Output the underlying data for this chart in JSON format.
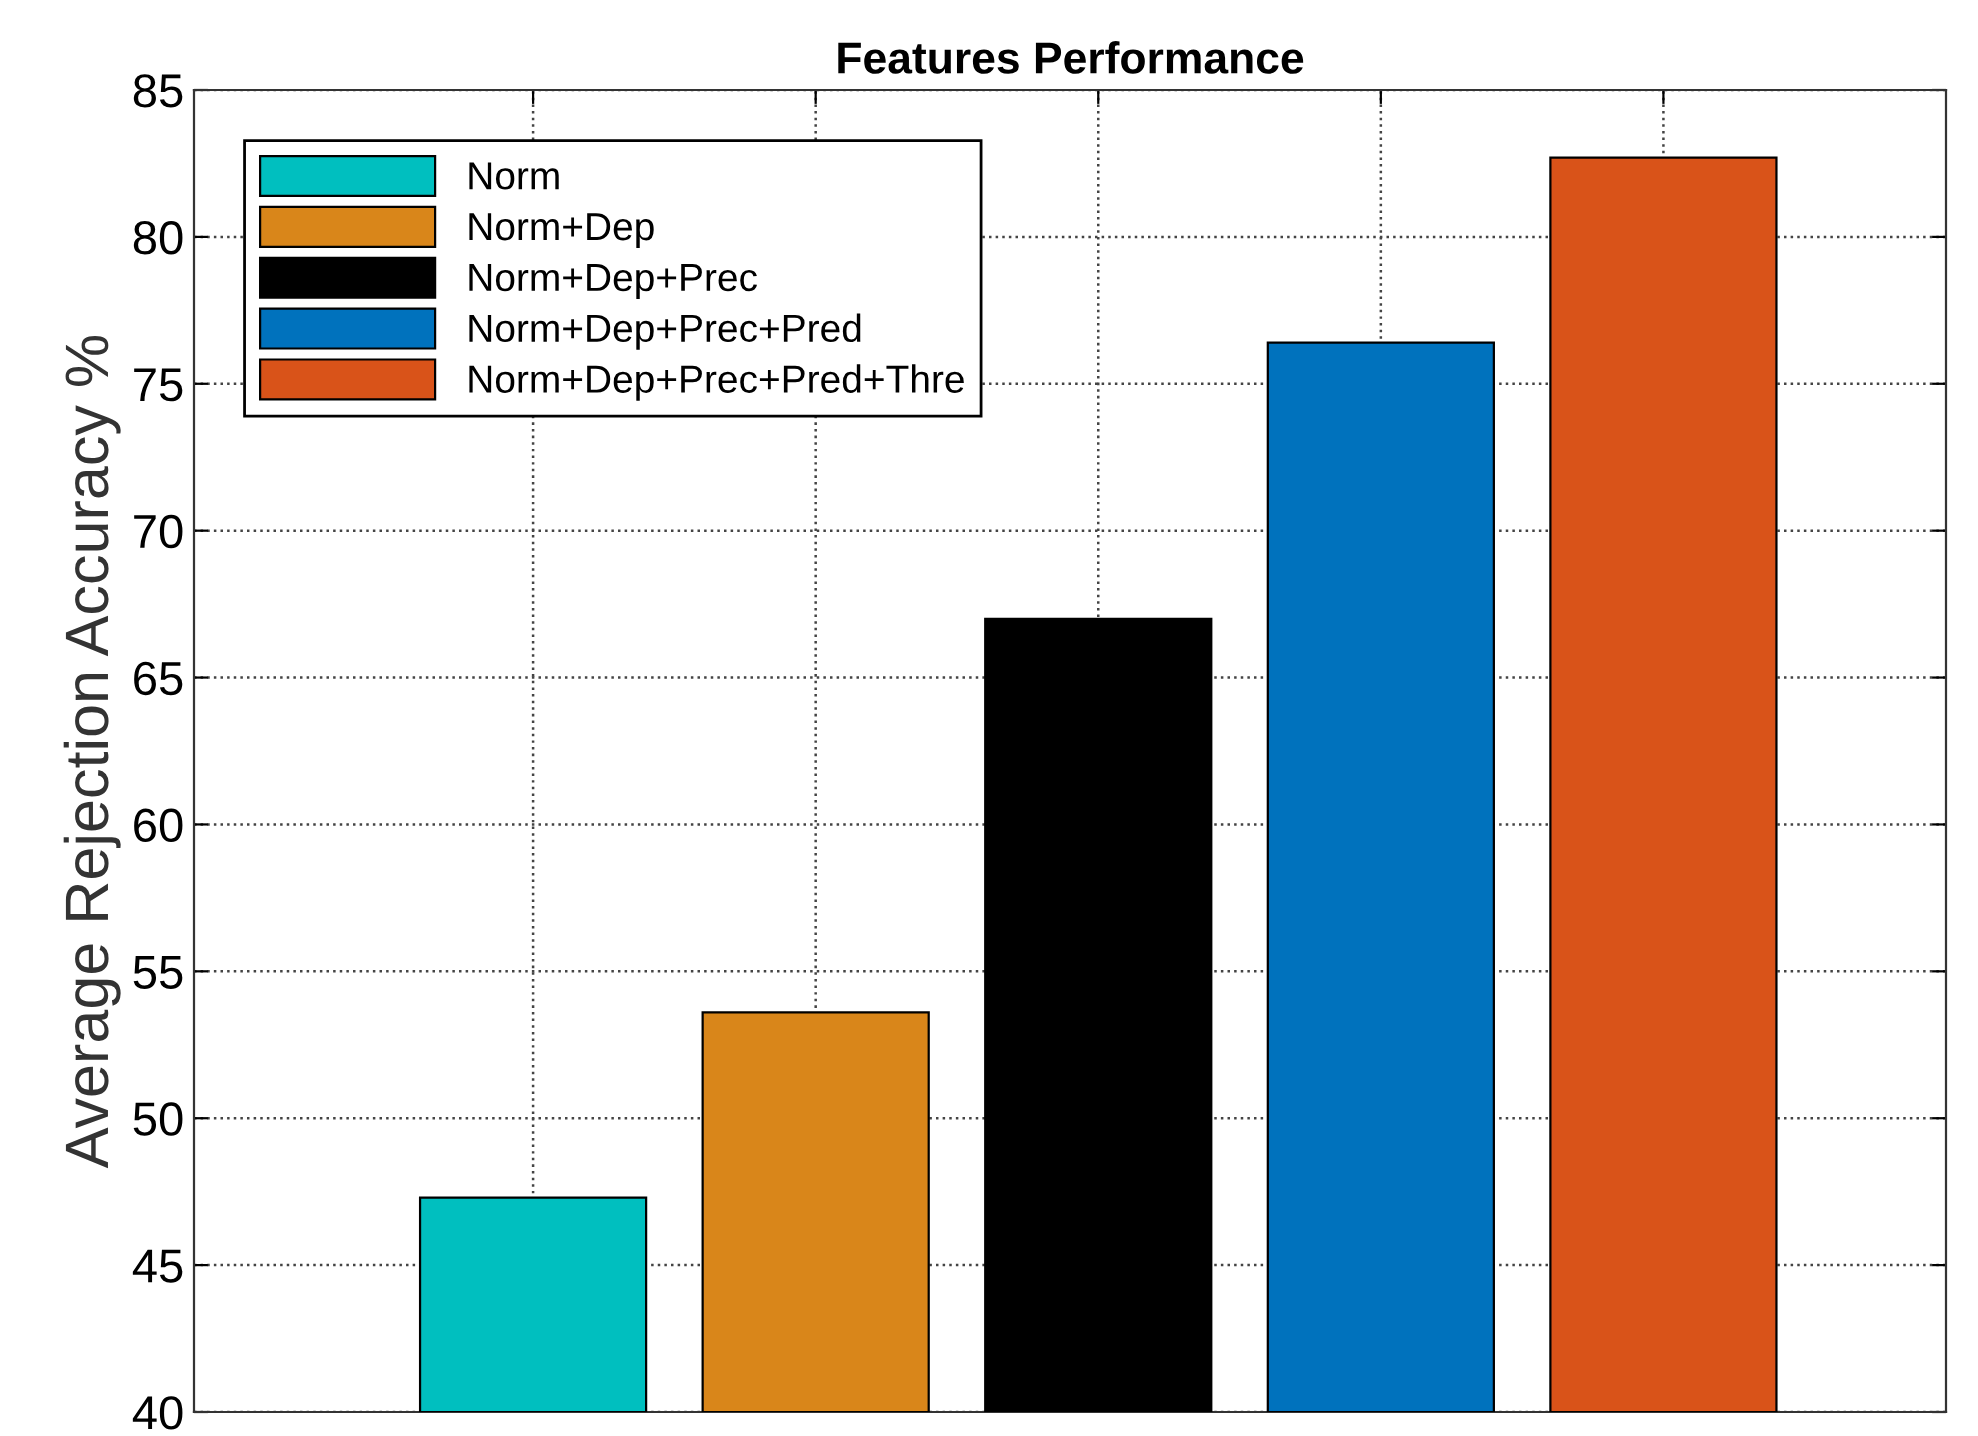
{
  "chart_data": {
    "type": "bar",
    "title": "Features Performance",
    "ylabel": "Average Rejection Accuracy %",
    "categories": [
      null,
      null,
      null,
      null,
      null
    ],
    "series": [
      {
        "name": "Norm",
        "color": "#00bfbf",
        "values": [
          47.3,
          null,
          null,
          null,
          null
        ]
      },
      {
        "name": "Norm+Dep",
        "color": "#d9861a",
        "values": [
          null,
          53.6,
          null,
          null,
          null
        ]
      },
      {
        "name": "Norm+Dep+Prec",
        "color": "#000000",
        "values": [
          null,
          null,
          67.0,
          null,
          null
        ]
      },
      {
        "name": "Norm+Dep+Prec+Pred",
        "color": "#0072bd",
        "values": [
          null,
          null,
          null,
          76.4,
          null
        ]
      },
      {
        "name": "Norm+Dep+Prec+Pred+Thre",
        "color": "#d95319",
        "values": [
          null,
          null,
          null,
          null,
          82.7
        ]
      }
    ],
    "ylim": [
      40,
      85
    ],
    "yticks": [
      40,
      45,
      50,
      55,
      60,
      65,
      70,
      75,
      80,
      85
    ],
    "grid": true,
    "legend": "top left",
    "tick_labels": "y"
  }
}
